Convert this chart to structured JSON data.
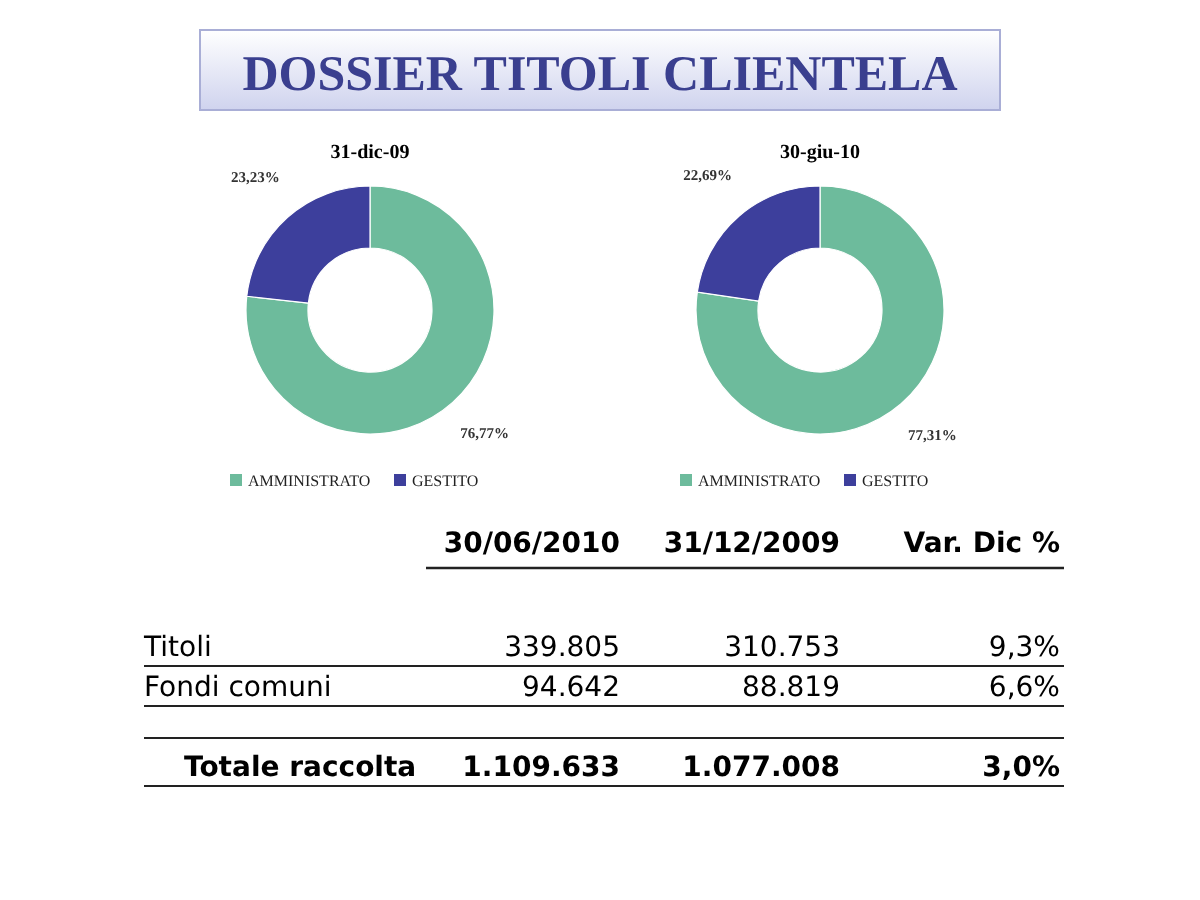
{
  "chart_data": [
    {
      "type": "donut",
      "title": "DOSSIER TITOLI CLIENTELA",
      "subtitle": "31-dic-09",
      "categories": [
        "AMMINISTRATO",
        "GESTITO"
      ],
      "values": [
        76.77,
        23.23
      ],
      "value_labels": [
        "76,77%",
        "23,23%"
      ],
      "colors": [
        "#6dbb9c",
        "#3d3f9c"
      ],
      "legend": "bottom"
    },
    {
      "type": "donut",
      "title": "30-giu-10",
      "categories": [
        "AMMINISTRATO",
        "GESTITO"
      ],
      "values": [
        77.31,
        22.69
      ],
      "value_labels": [
        "77,31%",
        "22,69%"
      ],
      "colors": [
        "#6dbb9c",
        "#3d3f9c"
      ],
      "legend": "bottom"
    },
    {
      "type": "other",
      "annotations": [
        "30/06/2010",
        "31/12/2009",
        "Var. Dic %",
        "Titoli",
        "339.805",
        "310.753",
        "9,3%",
        "Fondi comuni",
        "94.642",
        "88.819",
        "6,6%",
        "Totale raccolta",
        "1.109.633",
        "1.077.008",
        "3,0%"
      ]
    }
  ]
}
